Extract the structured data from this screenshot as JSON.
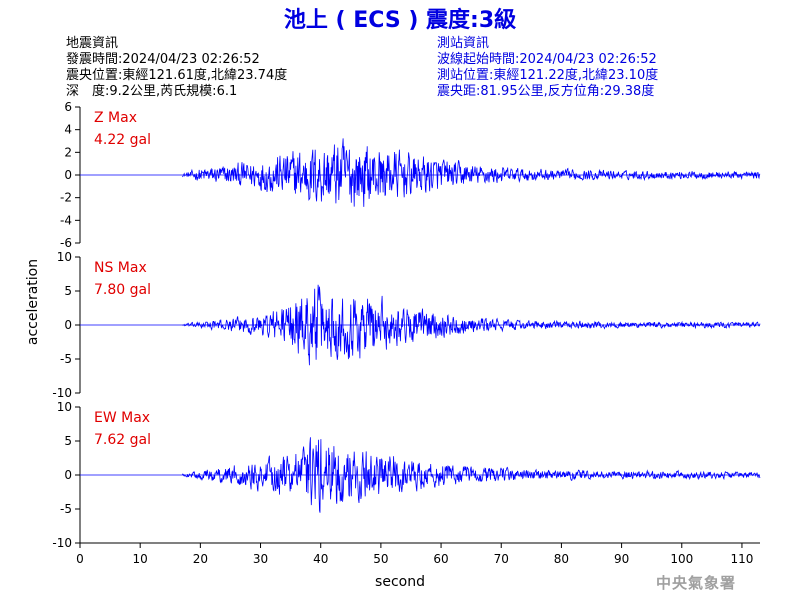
{
  "header": {
    "title": "池上 ( ECS ) 震度:3級"
  },
  "event_info": {
    "heading": "地震資訊",
    "time": "發震時間:2024/04/23 02:26:52",
    "location": "震央位置:東經121.61度,北緯23.74度",
    "depth_magnitude": "深　度:9.2公里,芮氏規模:6.1"
  },
  "station_info": {
    "heading": "測站資訊",
    "wave_start": "波線起始時間:2024/04/23 02:26:52",
    "location": "測站位置:東經121.22度,北緯23.10度",
    "distance_azimuth": "震央距:81.95公里,反方位角:29.38度"
  },
  "credit": "中央氣象署",
  "colors": {
    "title": "#0000e0",
    "station_text": "#0000e0",
    "trace": "#0000ff",
    "max_label": "#e00000",
    "credit": "#a0a0a0"
  },
  "chart_data": {
    "type": "line",
    "xlabel": "second",
    "ylabel": "acceleration",
    "xlim": [
      0,
      113
    ],
    "xticks": [
      0,
      10,
      20,
      30,
      40,
      50,
      60,
      70,
      80,
      90,
      100,
      110
    ],
    "grid": false,
    "panels": [
      {
        "name": "Z",
        "max_label": "Z Max",
        "max_value": "4.22 gal",
        "ylim": [
          -6,
          6
        ],
        "yticks": [
          6,
          4,
          2,
          0,
          -2,
          -4,
          -6
        ],
        "envelope": [
          {
            "t": 17,
            "amp": 0.15
          },
          {
            "t": 20,
            "amp": 0.8
          },
          {
            "t": 25,
            "amp": 1.2
          },
          {
            "t": 30,
            "amp": 1.8
          },
          {
            "t": 35,
            "amp": 2.8
          },
          {
            "t": 40,
            "amp": 3.6
          },
          {
            "t": 44,
            "amp": 4.2
          },
          {
            "t": 50,
            "amp": 3.2
          },
          {
            "t": 56,
            "amp": 2.4
          },
          {
            "t": 65,
            "amp": 1.2
          },
          {
            "t": 75,
            "amp": 0.7
          },
          {
            "t": 90,
            "amp": 0.5
          },
          {
            "t": 113,
            "amp": 0.4
          }
        ]
      },
      {
        "name": "NS",
        "max_label": "NS Max",
        "max_value": "7.80 gal",
        "ylim": [
          -10,
          10
        ],
        "yticks": [
          10,
          5,
          0,
          -5,
          -10
        ],
        "envelope": [
          {
            "t": 17,
            "amp": 0.2
          },
          {
            "t": 20,
            "amp": 0.6
          },
          {
            "t": 25,
            "amp": 1.2
          },
          {
            "t": 30,
            "amp": 2.0
          },
          {
            "t": 35,
            "amp": 4.5
          },
          {
            "t": 39,
            "amp": 7.8
          },
          {
            "t": 43,
            "amp": 5.8
          },
          {
            "t": 47,
            "amp": 6.8
          },
          {
            "t": 52,
            "amp": 4.0
          },
          {
            "t": 58,
            "amp": 2.8
          },
          {
            "t": 65,
            "amp": 1.4
          },
          {
            "t": 75,
            "amp": 0.8
          },
          {
            "t": 90,
            "amp": 0.6
          },
          {
            "t": 113,
            "amp": 0.5
          }
        ]
      },
      {
        "name": "EW",
        "max_label": "EW Max",
        "max_value": "7.62 gal",
        "ylim": [
          -10,
          10
        ],
        "yticks": [
          10,
          5,
          0,
          -5,
          -10
        ],
        "envelope": [
          {
            "t": 17,
            "amp": 0.2
          },
          {
            "t": 20,
            "amp": 0.8
          },
          {
            "t": 25,
            "amp": 1.8
          },
          {
            "t": 30,
            "amp": 2.8
          },
          {
            "t": 35,
            "amp": 4.0
          },
          {
            "t": 40,
            "amp": 7.6
          },
          {
            "t": 45,
            "amp": 5.5
          },
          {
            "t": 50,
            "amp": 4.2
          },
          {
            "t": 56,
            "amp": 3.0
          },
          {
            "t": 65,
            "amp": 1.6
          },
          {
            "t": 75,
            "amp": 1.0
          },
          {
            "t": 90,
            "amp": 0.8
          },
          {
            "t": 113,
            "amp": 0.6
          }
        ]
      }
    ]
  }
}
